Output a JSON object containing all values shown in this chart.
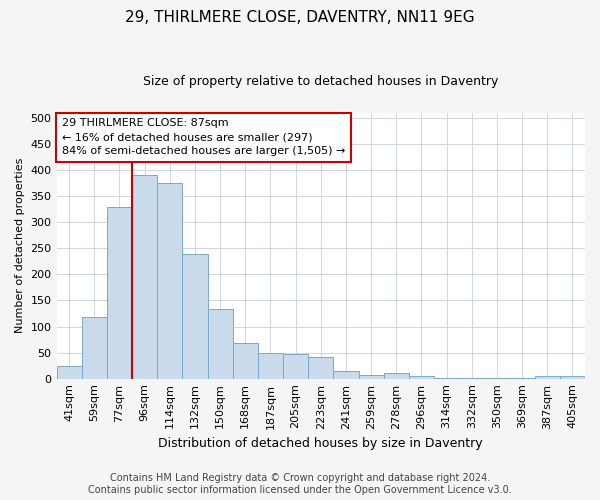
{
  "title1": "29, THIRLMERE CLOSE, DAVENTRY, NN11 9EG",
  "title2": "Size of property relative to detached houses in Daventry",
  "xlabel": "Distribution of detached houses by size in Daventry",
  "ylabel": "Number of detached properties",
  "categories": [
    "41sqm",
    "59sqm",
    "77sqm",
    "96sqm",
    "114sqm",
    "132sqm",
    "150sqm",
    "168sqm",
    "187sqm",
    "205sqm",
    "223sqm",
    "241sqm",
    "259sqm",
    "278sqm",
    "296sqm",
    "314sqm",
    "332sqm",
    "350sqm",
    "369sqm",
    "387sqm",
    "405sqm"
  ],
  "values": [
    25,
    118,
    330,
    390,
    375,
    240,
    133,
    68,
    50,
    48,
    42,
    15,
    8,
    10,
    5,
    2,
    1,
    1,
    1,
    5,
    5
  ],
  "bar_color": "#c9daea",
  "bar_edge_color": "#7aaac8",
  "vline_bin_index": 2,
  "vline_color": "#cc0000",
  "annotation_line1": "29 THIRLMERE CLOSE: 87sqm",
  "annotation_line2": "← 16% of detached houses are smaller (297)",
  "annotation_line3": "84% of semi-detached houses are larger (1,505) →",
  "annotation_box_facecolor": "#ffffff",
  "annotation_box_edgecolor": "#cc0000",
  "ylim": [
    0,
    510
  ],
  "yticks": [
    0,
    50,
    100,
    150,
    200,
    250,
    300,
    350,
    400,
    450,
    500
  ],
  "footer1": "Contains HM Land Registry data © Crown copyright and database right 2024.",
  "footer2": "Contains public sector information licensed under the Open Government Licence v3.0.",
  "bg_color": "#f5f5f5",
  "plot_bg_color": "#ffffff",
  "grid_color": "#c8d0dc",
  "title1_fontsize": 11,
  "title2_fontsize": 9,
  "xlabel_fontsize": 9,
  "ylabel_fontsize": 8,
  "tick_fontsize": 8,
  "annot_fontsize": 8,
  "footer_fontsize": 7
}
